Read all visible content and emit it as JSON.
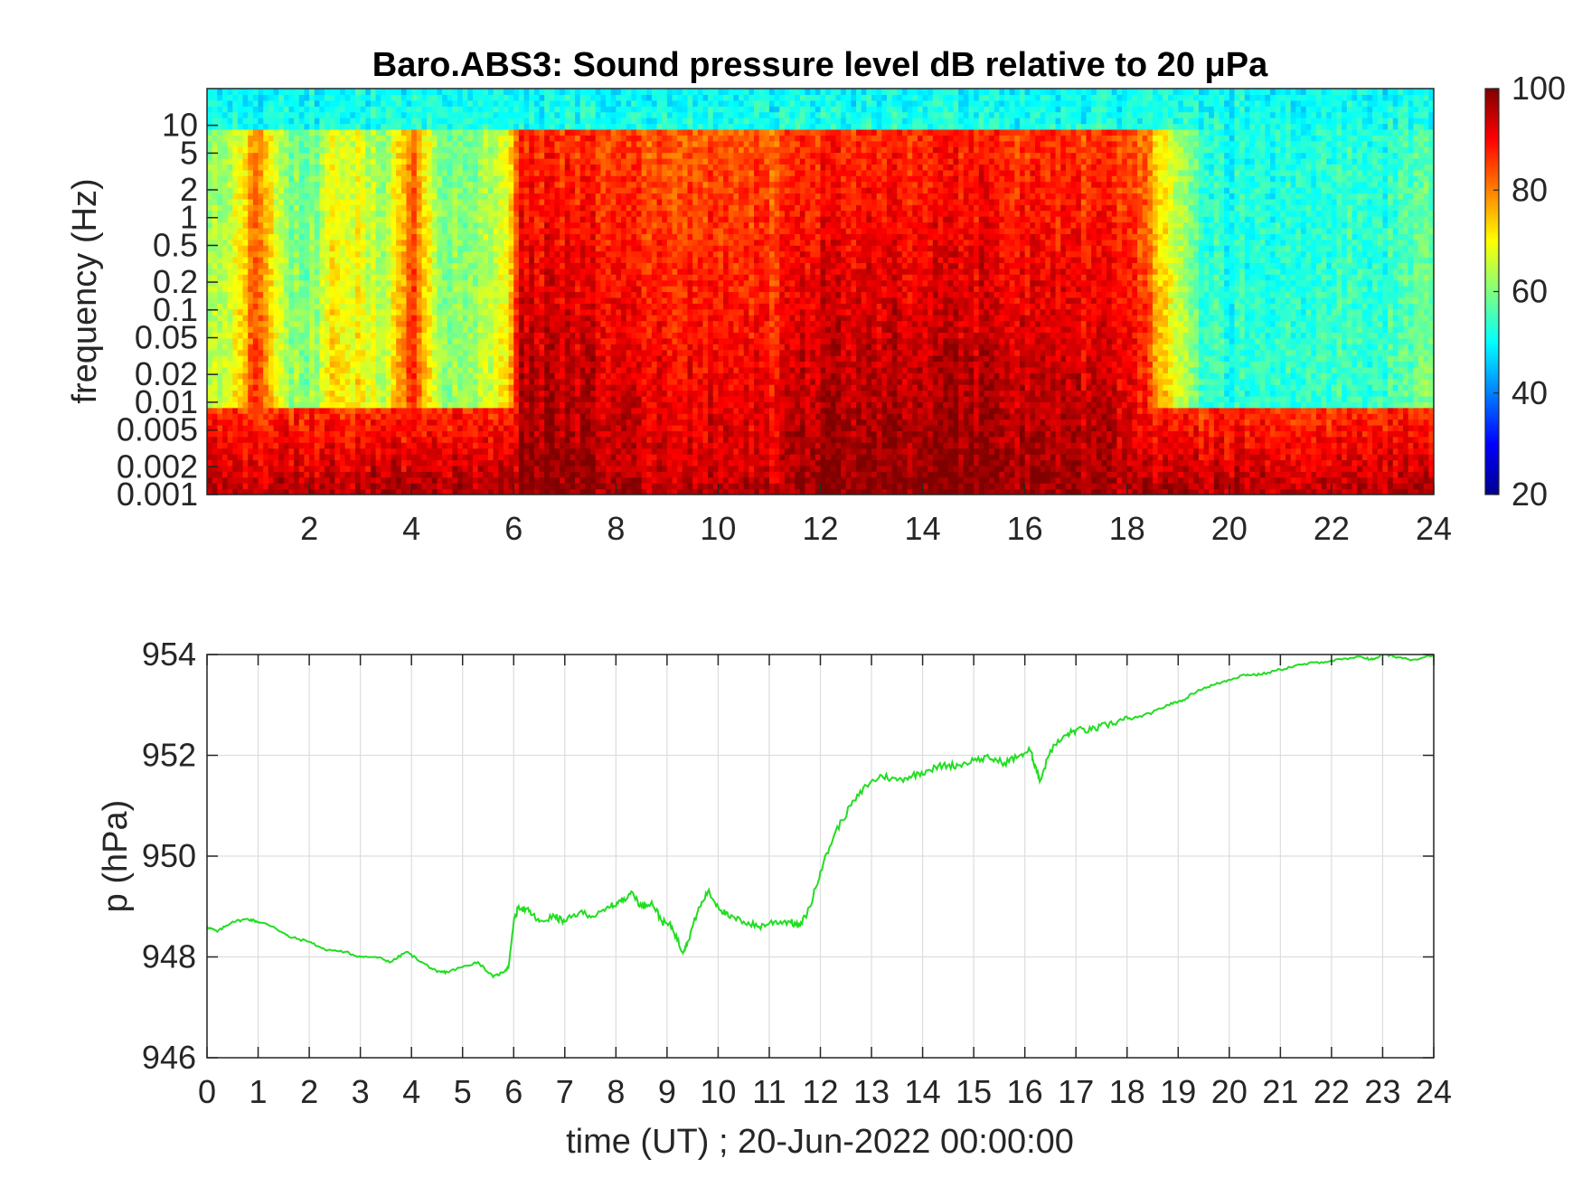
{
  "figure": {
    "title": "Baro.ABS3: Sound pressure level dB relative to 20 μPa"
  },
  "chart_data": [
    {
      "type": "heatmap",
      "title": "Baro.ABS3: Sound pressure level dB relative to 20 μPa",
      "xlabel": "",
      "ylabel": "frequency (Hz)",
      "yscale": "log",
      "xlim": [
        0,
        24
      ],
      "ylim": [
        0.001,
        25
      ],
      "x_ticks": [
        2,
        4,
        6,
        8,
        10,
        12,
        14,
        16,
        18,
        20,
        22,
        24
      ],
      "x_tick_labels": [
        "2",
        "4",
        "6",
        "8",
        "10",
        "12",
        "14",
        "16",
        "18",
        "20",
        "22",
        "24"
      ],
      "y_ticks": [
        0.001,
        0.002,
        0.005,
        0.01,
        0.02,
        0.05,
        0.1,
        0.2,
        0.5,
        1,
        2,
        5,
        10
      ],
      "y_tick_labels": [
        "0.001",
        "0.002",
        "0.005",
        "0.01",
        "0.02",
        "0.05",
        "0.1",
        "0.2",
        "0.5",
        "1",
        "2",
        "5",
        "10"
      ],
      "colormap": "jet",
      "colorbar": {
        "range": [
          20,
          100
        ],
        "ticks": [
          20,
          40,
          60,
          80,
          100
        ],
        "tick_labels": [
          "20",
          "40",
          "60",
          "80",
          "100"
        ]
      },
      "intensity_profile_hours": [
        0,
        0.5,
        1.0,
        1.5,
        2.0,
        2.5,
        3.0,
        3.5,
        4.0,
        4.5,
        5.0,
        5.5,
        5.9,
        6.1,
        7,
        8,
        9,
        10,
        11,
        12,
        13,
        14,
        15,
        16,
        17,
        17.8,
        18.3,
        18.8,
        19.5,
        20,
        21,
        22,
        23,
        23.7,
        24
      ],
      "intensity_profile_level": [
        0.35,
        0.45,
        0.85,
        0.35,
        0.3,
        0.55,
        0.5,
        0.35,
        0.85,
        0.35,
        0.3,
        0.4,
        0.5,
        1.0,
        0.97,
        0.96,
        0.88,
        0.9,
        0.88,
        0.98,
        1.0,
        0.97,
        1.0,
        0.97,
        0.95,
        0.95,
        0.85,
        0.5,
        0.2,
        0.15,
        0.18,
        0.2,
        0.18,
        0.25,
        0.3
      ]
    },
    {
      "type": "line",
      "title": "",
      "xlabel": "time (UT) ; 20-Jun-2022 00:00:00",
      "ylabel": "p (hPa)",
      "xlim": [
        0,
        24
      ],
      "ylim": [
        946,
        954
      ],
      "grid": true,
      "x_ticks": [
        0,
        1,
        2,
        3,
        4,
        5,
        6,
        7,
        8,
        9,
        10,
        11,
        12,
        13,
        14,
        15,
        16,
        17,
        18,
        19,
        20,
        21,
        22,
        23,
        24
      ],
      "x_tick_labels": [
        "0",
        "1",
        "2",
        "3",
        "4",
        "5",
        "6",
        "7",
        "8",
        "9",
        "10",
        "11",
        "12",
        "13",
        "14",
        "15",
        "16",
        "17",
        "18",
        "19",
        "20",
        "21",
        "22",
        "23",
        "24"
      ],
      "y_ticks": [
        946,
        948,
        950,
        952,
        954
      ],
      "y_tick_labels": [
        "946",
        "948",
        "950",
        "952",
        "954"
      ],
      "color": "#22dd22",
      "series": [
        {
          "x": [
            0,
            0.2,
            0.5,
            0.8,
            1.0,
            1.3,
            1.6,
            2.0,
            2.3,
            2.7,
            3.0,
            3.3,
            3.6,
            3.9,
            4.2,
            4.5,
            4.7,
            5.0,
            5.3,
            5.6,
            5.8,
            5.9,
            6.0,
            6.1,
            6.3,
            6.5,
            6.8,
            7.0,
            7.3,
            7.6,
            7.9,
            8.1,
            8.3,
            8.5,
            8.7,
            8.9,
            9.1,
            9.3,
            9.4,
            9.6,
            9.8,
            10.0,
            10.2,
            10.5,
            10.8,
            11.1,
            11.4,
            11.6,
            11.8,
            12.0,
            12.3,
            12.6,
            12.9,
            13.2,
            13.5,
            13.8,
            14.1,
            14.4,
            14.7,
            15.0,
            15.3,
            15.6,
            15.9,
            16.1,
            16.2,
            16.3,
            16.5,
            16.8,
            17.0,
            17.3,
            17.6,
            17.9,
            18.2,
            18.5,
            18.8,
            19.1,
            19.4,
            19.7,
            20.0,
            20.3,
            20.6,
            21.0,
            21.4,
            21.8,
            22.2,
            22.6,
            22.8,
            23.0,
            23.3,
            23.6,
            24.0
          ],
          "y": [
            948.6,
            948.5,
            948.7,
            948.75,
            948.7,
            948.6,
            948.4,
            948.3,
            948.15,
            948.1,
            948.0,
            948.0,
            947.9,
            948.1,
            947.9,
            947.7,
            947.7,
            947.8,
            947.9,
            947.6,
            947.7,
            947.8,
            948.7,
            949.0,
            948.9,
            948.7,
            948.8,
            948.7,
            948.9,
            948.8,
            949.0,
            949.1,
            949.3,
            949.0,
            949.1,
            948.7,
            948.6,
            948.1,
            948.3,
            948.9,
            949.3,
            949.0,
            948.8,
            948.7,
            948.6,
            948.7,
            948.7,
            948.6,
            949.0,
            949.7,
            950.5,
            951.0,
            951.4,
            951.6,
            951.5,
            951.6,
            951.7,
            951.8,
            951.8,
            951.9,
            951.95,
            951.85,
            952.0,
            952.1,
            951.8,
            951.5,
            952.1,
            952.4,
            952.5,
            952.5,
            952.6,
            952.7,
            952.75,
            952.85,
            953.0,
            953.1,
            953.3,
            953.4,
            953.5,
            953.6,
            953.6,
            953.7,
            953.8,
            953.85,
            953.9,
            953.95,
            953.9,
            954.0,
            953.95,
            953.9,
            954.0
          ]
        }
      ]
    }
  ]
}
